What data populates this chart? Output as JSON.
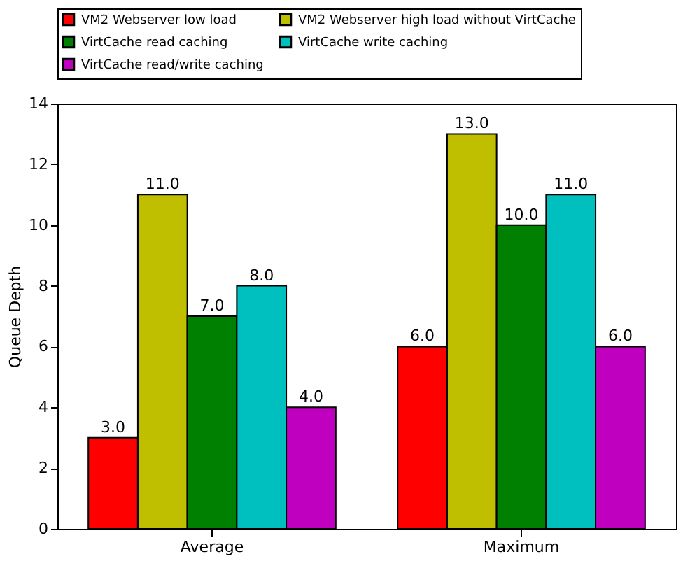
{
  "chart_data": {
    "type": "bar",
    "ylabel": "Queue Depth",
    "categories": [
      "Average",
      "Maximum"
    ],
    "series": [
      {
        "name": "VM2 Webserver low load",
        "color": "#ff0000",
        "values": [
          3.0,
          6.0
        ],
        "value_labels": [
          "3.0",
          "6.0"
        ]
      },
      {
        "name": "VM2 Webserver high load without VirtCache",
        "color": "#bfbf00",
        "values": [
          11.0,
          13.0
        ],
        "value_labels": [
          "11.0",
          "13.0"
        ]
      },
      {
        "name": "VirtCache read caching",
        "color": "#008000",
        "values": [
          7.0,
          10.0
        ],
        "value_labels": [
          "7.0",
          "10.0"
        ]
      },
      {
        "name": "VirtCache write caching",
        "color": "#00bfbf",
        "values": [
          8.0,
          11.0
        ],
        "value_labels": [
          "8.0",
          "11.0"
        ]
      },
      {
        "name": "VirtCache read/write caching",
        "color": "#bf00bf",
        "values": [
          4.0,
          6.0
        ],
        "value_labels": [
          "4.0",
          "6.0"
        ]
      }
    ],
    "ylim": [
      0,
      14
    ],
    "yticks": [
      0,
      2,
      4,
      6,
      8,
      10,
      12,
      14
    ],
    "grid": false,
    "legend": "top"
  }
}
